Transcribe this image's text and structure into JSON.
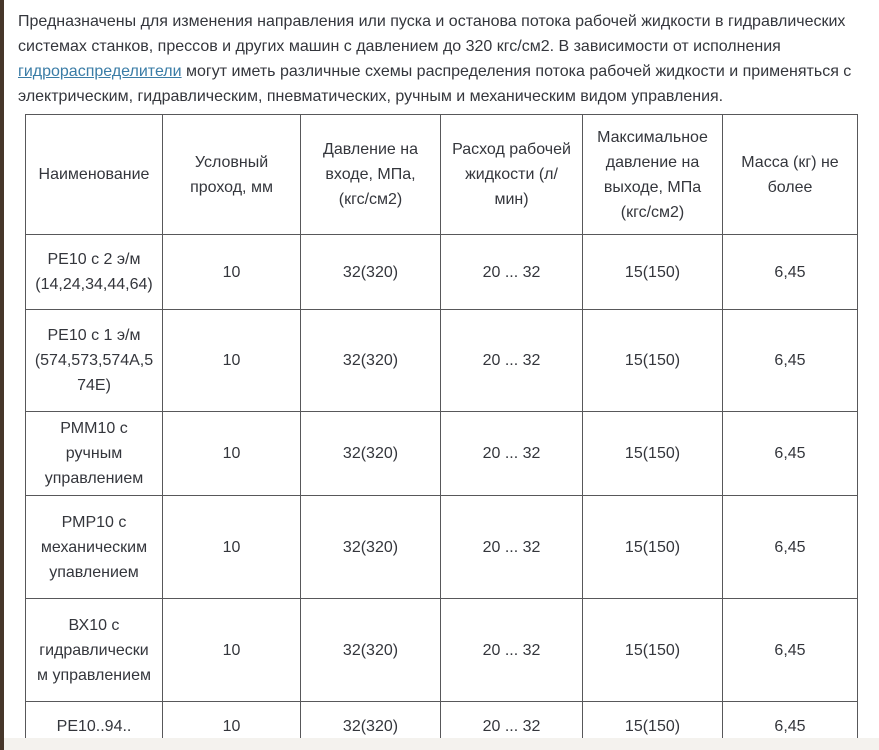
{
  "intro": {
    "before": "Предназначены для изменения направления или пуска и останова потока рабочей жидкости в гидравлических системах станков, прессов и других машин с давлением до 320 кгс/см2. В зависимости от исполнения ",
    "link": "гидрораспределители",
    "after": " могут иметь различные схемы распределения потока рабочей жидкости и применяться с электрическим, гидравлическим, пневматических, ручным и механическим видом управления."
  },
  "table": {
    "headers": [
      "Наименование",
      "Условный проход, мм",
      "Давление на входе, МПа, (кгс/см2)",
      "Расход рабочей жидкости (л/ мин)",
      "Максимальное давление на выходе, МПа (кгс/см2)",
      "Масса (кг) не более"
    ],
    "rows": [
      [
        "РЕ10 с 2 э/м (14,24,34,44,64)",
        "10",
        "32(320)",
        "20 ... 32",
        "15(150)",
        "6,45"
      ],
      [
        "РЕ10 с 1 э/м (574,573,574А,574Е)",
        "10",
        "32(320)",
        "20 ... 32",
        "15(150)",
        "6,45"
      ],
      [
        "РММ10 с ручным управлением",
        "10",
        "32(320)",
        "20 ... 32",
        "15(150)",
        "6,45"
      ],
      [
        "РМР10 с механическим упавлением",
        "10",
        "32(320)",
        "20 ... 32",
        "15(150)",
        "6,45"
      ],
      [
        "ВХ10 с гидравлическим управлением",
        "10",
        "32(320)",
        "20 ... 32",
        "15(150)",
        "6,45"
      ],
      [
        "РЕ10..94..",
        "10",
        "32(320)",
        "20 ... 32",
        "15(150)",
        "6,45"
      ]
    ]
  },
  "colors": {
    "text": "#34363c",
    "link": "#3a7ca6",
    "table_border": "#58585a",
    "page_left_border": "#46362a",
    "below_table_strip": "#f4f2ee"
  },
  "chart_data": {
    "type": "table",
    "title": "",
    "columns": [
      "Наименование",
      "Условный проход, мм",
      "Давление на входе, МПа, (кгс/см2)",
      "Расход рабочей жидкости (л/ мин)",
      "Максимальное давление на выходе, МПа (кгс/см2)",
      "Масса (кг) не более"
    ],
    "rows": [
      [
        "РЕ10 с 2 э/м (14,24,34,44,64)",
        "10",
        "32(320)",
        "20 ... 32",
        "15(150)",
        "6,45"
      ],
      [
        "РЕ10 с 1 э/м (574,573,574А,574Е)",
        "10",
        "32(320)",
        "20 ... 32",
        "15(150)",
        "6,45"
      ],
      [
        "РММ10 с ручным управлением",
        "10",
        "32(320)",
        "20 ... 32",
        "15(150)",
        "6,45"
      ],
      [
        "РМР10 с механическим упавлением",
        "10",
        "32(320)",
        "20 ... 32",
        "15(150)",
        "6,45"
      ],
      [
        "ВХ10 с гидравлическим управлением",
        "10",
        "32(320)",
        "20 ... 32",
        "15(150)",
        "6,45"
      ],
      [
        "РЕ10..94..",
        "10",
        "32(320)",
        "20 ... 32",
        "15(150)",
        "6,45"
      ]
    ]
  }
}
